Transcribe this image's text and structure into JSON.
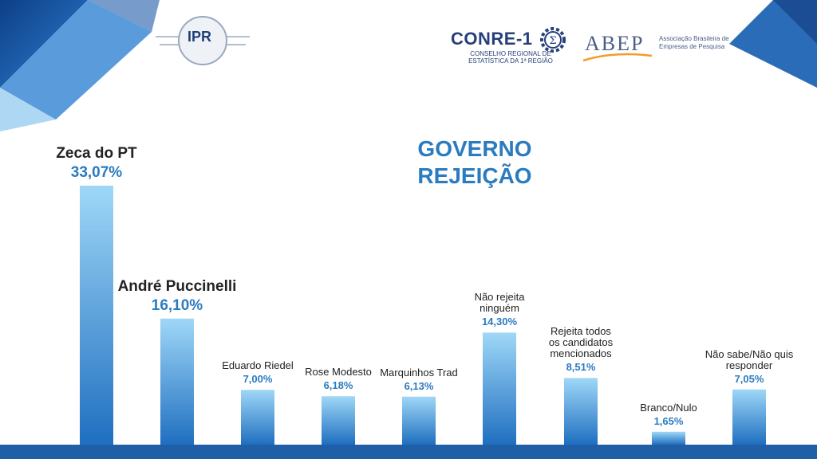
{
  "logos": {
    "ipr": "IPR",
    "conre_name": "CONRE-1",
    "conre_sub": "CONSELHO REGIONAL DE ESTATÍSTICA DA 1ª REGIÃO",
    "abep_name": "ABEP",
    "abep_sub": "Associação Brasileira de Empresas de Pesquisa"
  },
  "title": [
    "GOVERNO",
    "REJEIÇÃO"
  ],
  "colors": {
    "bar_top": "#9fd7f7",
    "bar_bottom": "#1f6fc0",
    "accent": "#2a7bc0",
    "banner": "#1f5fa8"
  },
  "chart_data": {
    "type": "bar",
    "title": "GOVERNO REJEIÇÃO",
    "categories": [
      "Zeca do PT",
      "André Puccinelli",
      "Eduardo Riedel",
      "Rose Modesto",
      "Marquinhos Trad",
      "Não rejeita ninguém",
      "Rejeita todos os candidatos mencionados",
      "Branco/Nulo",
      "Não sabe/Não quis responder"
    ],
    "category_lines": [
      [
        "Zeca do PT"
      ],
      [
        "André Puccinelli"
      ],
      [
        "Eduardo Riedel"
      ],
      [
        "Rose Modesto"
      ],
      [
        "Marquinhos Trad"
      ],
      [
        "Não rejeita",
        "ninguém"
      ],
      [
        "Rejeita todos",
        "os candidatos",
        "mencionados"
      ],
      [
        "Branco/Nulo"
      ],
      [
        "Não sabe/Não quis",
        "responder"
      ]
    ],
    "values": [
      33.07,
      16.1,
      7.0,
      6.18,
      6.13,
      14.3,
      8.51,
      1.65,
      7.05
    ],
    "value_labels": [
      "33,07%",
      "16,10%",
      "7,00%",
      "6,18%",
      "6,13%",
      "14,30%",
      "8,51%",
      "1,65%",
      "7,05%"
    ],
    "ylim": [
      0,
      33.07
    ],
    "grid": false,
    "legend": "none"
  }
}
